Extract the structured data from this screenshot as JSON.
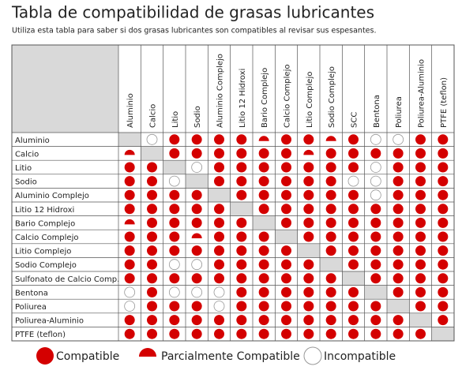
{
  "header": {
    "title": "Tabla de compatibilidad de grasas lubricantes",
    "subtitle": "Utiliza esta tabla para saber si dos grasas lubricantes son compatibles al revisar sus espesantes."
  },
  "table": {
    "columns": [
      "Aluminio",
      "Calcio",
      "Litio",
      "Sodio",
      "Aluminio Complejo",
      "Litio 12 Hidroxi",
      "Bario Complejo",
      "Calcio Complejo",
      "Litio Complejo",
      "Sodio Complejo",
      "SCC",
      "Bentona",
      "Poliurea",
      "Poliurea-Aluminio",
      "PTFE (teflon)"
    ],
    "rows": [
      {
        "label": "Aluminio",
        "cells": [
          null,
          "I",
          "C",
          "C",
          "C",
          "C",
          "P",
          "C",
          "C",
          "P",
          "C",
          "I",
          "I",
          "C",
          "C"
        ]
      },
      {
        "label": "Calcio",
        "cells": [
          "P",
          null,
          "C",
          "C",
          "C",
          "C",
          "C",
          "C",
          "P",
          "C",
          "C",
          "C",
          "C",
          "C",
          "C"
        ]
      },
      {
        "label": "Litio",
        "cells": [
          "C",
          "C",
          null,
          "I",
          "C",
          "C",
          "C",
          "C",
          "C",
          "C",
          "C",
          "I",
          "C",
          "C",
          "C"
        ]
      },
      {
        "label": "Sodio",
        "cells": [
          "C",
          "C",
          "I",
          null,
          "C",
          "C",
          "C",
          "C",
          "C",
          "C",
          "I",
          "I",
          "C",
          "C",
          "C"
        ]
      },
      {
        "label": "Aluminio Complejo",
        "cells": [
          "C",
          "C",
          "C",
          "C",
          null,
          "C",
          "C",
          "C",
          "C",
          "C",
          "C",
          "I",
          "C",
          "C",
          "C"
        ]
      },
      {
        "label": "Litio 12 Hidroxi",
        "cells": [
          "C",
          "C",
          "C",
          "C",
          "C",
          null,
          "C",
          "C",
          "C",
          "C",
          "C",
          "C",
          "C",
          "C",
          "C"
        ]
      },
      {
        "label": "Bario Complejo",
        "cells": [
          "P",
          "C",
          "C",
          "C",
          "C",
          "C",
          null,
          "C",
          "C",
          "C",
          "C",
          "C",
          "C",
          "C",
          "C"
        ]
      },
      {
        "label": "Calcio Complejo",
        "cells": [
          "C",
          "C",
          "C",
          "P",
          "C",
          "C",
          "C",
          null,
          "C",
          "C",
          "C",
          "C",
          "C",
          "C",
          "C"
        ]
      },
      {
        "label": "Litio Complejo",
        "cells": [
          "C",
          "C",
          "C",
          "C",
          "C",
          "C",
          "C",
          "C",
          null,
          "C",
          "C",
          "C",
          "C",
          "C",
          "C"
        ]
      },
      {
        "label": "Sodio Complejo",
        "cells": [
          "C",
          "C",
          "I",
          "I",
          "C",
          "C",
          "C",
          "C",
          "C",
          null,
          "C",
          "C",
          "C",
          "C",
          "C"
        ]
      },
      {
        "label": "Sulfonato de Calcio Comp.",
        "cells": [
          "C",
          "C",
          "C",
          "C",
          "C",
          "C",
          "C",
          "C",
          "C",
          "C",
          null,
          "C",
          "C",
          "C",
          "C"
        ]
      },
      {
        "label": "Bentona",
        "cells": [
          "I",
          "C",
          "I",
          "I",
          "I",
          "C",
          "C",
          "C",
          "C",
          "C",
          "C",
          null,
          "C",
          "C",
          "C"
        ]
      },
      {
        "label": "Poliurea",
        "cells": [
          "I",
          "C",
          "C",
          "C",
          "I",
          "C",
          "C",
          "C",
          "C",
          "C",
          "C",
          "C",
          null,
          "C",
          "C"
        ]
      },
      {
        "label": "Poliurea-Aluminio",
        "cells": [
          "C",
          "C",
          "C",
          "C",
          "C",
          "C",
          "C",
          "C",
          "C",
          "C",
          "C",
          "C",
          "C",
          null,
          "C"
        ]
      },
      {
        "label": "PTFE (teflon)",
        "cells": [
          "C",
          "C",
          "C",
          "C",
          "C",
          "C",
          "C",
          "C",
          "C",
          "C",
          "C",
          "C",
          "C",
          "C",
          null
        ]
      }
    ]
  },
  "legend": {
    "compatible": "Compatible",
    "partial": "Parcialmente Compatible",
    "incompatible": "Incompatible"
  },
  "color": "#d40000"
}
